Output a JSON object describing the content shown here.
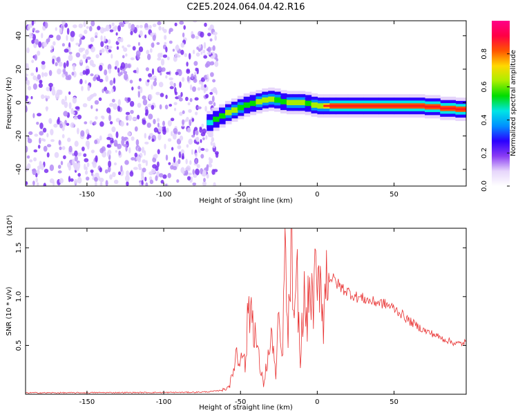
{
  "figure": {
    "title": "C2E5.2024.064.04.42.R16"
  },
  "chart_data": [
    {
      "type": "heatmap",
      "xlabel": "Height of straight line (km)",
      "ylabel": "Frequency (Hz)",
      "xlim": [
        -190,
        97
      ],
      "ylim": [
        -50,
        49
      ],
      "xticks": [
        -150,
        -100,
        -50,
        0,
        50
      ],
      "yticks": [
        -40,
        -20,
        0,
        20,
        40
      ],
      "grid": false,
      "colorbar": {
        "label": "Normalized spectral amplitude",
        "range": [
          0,
          1
        ],
        "ticks": [
          0.0,
          0.2,
          0.4,
          0.6,
          0.8
        ],
        "colors": [
          "#ffffff",
          "#e6d5fb",
          "#8a3cf3",
          "#2b00ff",
          "#0090ff",
          "#00e5e5",
          "#00dd00",
          "#aaee00",
          "#ffd800",
          "#ff5500",
          "#ff0044",
          "#ff0088"
        ]
      },
      "noise_region": {
        "x_range": [
          -190,
          -65
        ],
        "freq_range": [
          -50,
          49
        ],
        "amplitude_range": [
          0.02,
          0.12
        ]
      },
      "signal_ridge": {
        "x": [
          -72,
          -68,
          -64,
          -60,
          -56,
          -52,
          -48,
          -44,
          -40,
          -36,
          -32,
          -28,
          -24,
          -20,
          -16,
          -12,
          -8,
          -4,
          0,
          4,
          8,
          12,
          20,
          30,
          40,
          50,
          60,
          70,
          80,
          90,
          97
        ],
        "center_freq": [
          -13,
          -11,
          -9,
          -7,
          -5,
          -4,
          -2,
          -1,
          0,
          1,
          2,
          2,
          1,
          0,
          0,
          0,
          0,
          -1,
          -2,
          -2,
          -2,
          -2,
          -2,
          -2,
          -2,
          -2,
          -2,
          -2,
          -3,
          -4,
          -4
        ],
        "amplitude": [
          0.35,
          0.5,
          0.55,
          0.6,
          0.62,
          0.62,
          0.55,
          0.55,
          0.6,
          0.62,
          0.6,
          0.62,
          0.55,
          0.6,
          0.62,
          0.65,
          0.6,
          0.55,
          0.65,
          0.7,
          0.75,
          0.8,
          0.85,
          0.85,
          0.85,
          0.85,
          0.82,
          0.8,
          0.8,
          0.82,
          0.82
        ]
      }
    },
    {
      "type": "line",
      "xlabel": "Height of straight line (km)",
      "ylabel": "SNR (10 * v/v)",
      "y_multiplier_label": "(x10⁴)",
      "xlim": [
        -190,
        97
      ],
      "ylim": [
        0,
        17000
      ],
      "xticks": [
        -150,
        -100,
        -50,
        0,
        50
      ],
      "yticks": [
        0.5,
        1.0,
        1.5
      ],
      "ytick_labels": [
        "0.5",
        "1.0",
        "1.5"
      ],
      "grid": false,
      "series": [
        {
          "color": "#e83030",
          "x": [
            -190,
            -180,
            -160,
            -140,
            -120,
            -100,
            -80,
            -70,
            -65,
            -60,
            -57,
            -55,
            -53,
            -51,
            -49,
            -47,
            -45,
            -43,
            -41,
            -39,
            -37,
            -35,
            -33,
            -31,
            -29,
            -27,
            -25,
            -23,
            -21,
            -19,
            -17,
            -15,
            -13,
            -11,
            -9,
            -7,
            -5,
            -3,
            -1,
            0,
            2,
            4,
            6,
            8,
            10,
            12,
            15,
            20,
            25,
            30,
            35,
            40,
            45,
            50,
            55,
            60,
            65,
            70,
            75,
            80,
            85,
            90,
            95,
            97
          ],
          "values": [
            150,
            150,
            150,
            170,
            170,
            180,
            200,
            260,
            350,
            500,
            1000,
            2000,
            4500,
            3000,
            5500,
            2500,
            8500,
            9000,
            7000,
            4500,
            2500,
            1000,
            3000,
            4500,
            6000,
            1500,
            8000,
            3000,
            14500,
            5000,
            16000,
            6000,
            12000,
            2500,
            10500,
            7000,
            11000,
            9000,
            12000,
            9500,
            13000,
            7500,
            12500,
            12000,
            11800,
            11500,
            11000,
            10500,
            10000,
            9800,
            9500,
            9400,
            9200,
            8800,
            8200,
            7500,
            7000,
            6500,
            6200,
            5800,
            5500,
            5200,
            5200,
            5500
          ]
        }
      ]
    }
  ]
}
